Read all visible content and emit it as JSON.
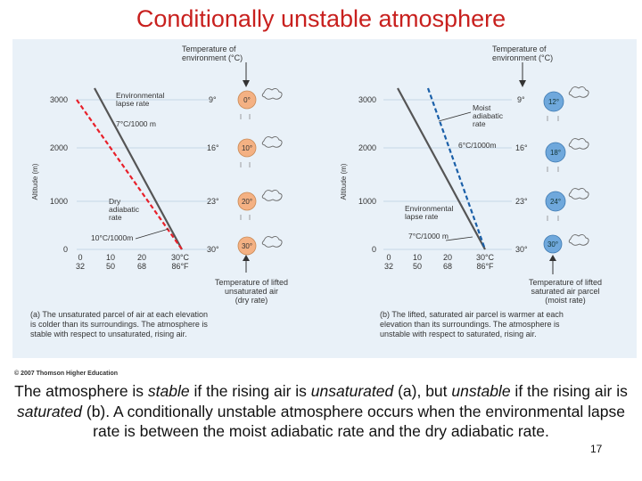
{
  "slide": {
    "title": "Conditionally unstable atmosphere",
    "copyright": "© 2007 Thomson Higher Education",
    "caption": {
      "p1": "The atmosphere is ",
      "p2": "stable",
      "p3": " if the rising air is ",
      "p4": "unsaturated",
      "p5": " (a), but ",
      "p6": "unstable",
      "p7": " if the rising air is ",
      "p8": "saturated",
      "p9": " (b). A conditionally unstable atmosphere occurs when the environmental lapse rate is between the moist adiabatic rate and the dry adiabatic rate."
    },
    "slide_number": "17"
  },
  "figure": {
    "panel_a": {
      "header": [
        "Temperature of",
        "environment (°C)"
      ],
      "y_label": "Altitude (m)",
      "y_ticks": [
        "3000",
        "2000",
        "1000",
        "0"
      ],
      "x_ticks_c": [
        "0",
        "10",
        "20",
        "30°C"
      ],
      "x_ticks_f": [
        "32",
        "50",
        "68",
        "86°F"
      ],
      "env_temps": [
        "9°",
        "16°",
        "23°",
        "30°"
      ],
      "parcel_temps": [
        "0°",
        "10°",
        "20°",
        "30°"
      ],
      "labels": {
        "env_lapse": [
          "Environmental",
          "lapse rate"
        ],
        "env_rate": "7°C/1000 m",
        "dry": [
          "Dry",
          "adiabatic",
          "rate"
        ],
        "dry_rate": "10°C/1000m"
      },
      "parcel_note": [
        "Temperature of lifted",
        "unsaturated air",
        "(dry rate)"
      ],
      "description": [
        "(a) The unsaturated parcel of air at each elevation",
        "is colder than its surroundings. The atmosphere is",
        "stable with respect to unsaturated, rising air."
      ]
    },
    "panel_b": {
      "header": [
        "Temperature of",
        "environment (°C)"
      ],
      "y_label": "Altitude (m)",
      "y_ticks": [
        "3000",
        "2000",
        "1000",
        "0"
      ],
      "x_ticks_c": [
        "0",
        "10",
        "20",
        "30°C"
      ],
      "x_ticks_f": [
        "32",
        "50",
        "68",
        "86°F"
      ],
      "env_temps": [
        "9°",
        "16°",
        "23°",
        "30°"
      ],
      "parcel_temps": [
        "12°",
        "18°",
        "24°",
        "30°"
      ],
      "labels": {
        "moist": [
          "Moist",
          "adiabatic",
          "rate"
        ],
        "moist_rate": "6°C/1000m",
        "env_lapse": [
          "Environmental",
          "lapse rate"
        ],
        "env_rate": "7°C/1000 m"
      },
      "parcel_note": [
        "Temperature of lifted",
        "saturated air parcel",
        "(moist rate)"
      ],
      "description": [
        "(b) The lifted, saturated air parcel is warmer at each",
        "elevation than its surroundings. The atmosphere is",
        "unstable with respect to saturated, rising air."
      ]
    },
    "colors": {
      "environment_line": "#555555",
      "dry_line": "#e8202a",
      "moist_line": "#1a5fa8",
      "parcel_dry_fill": "#f4b183",
      "parcel_moist_fill": "#6fa8dc"
    }
  }
}
